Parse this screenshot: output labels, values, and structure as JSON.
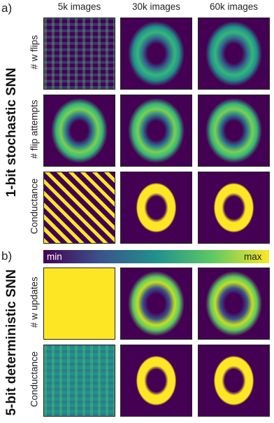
{
  "panel_a": {
    "label": "a)",
    "title": "1-bit stochastic SNN",
    "columns": [
      "5k images",
      "30k images",
      "60k images"
    ],
    "rows": [
      "# w flips",
      "# flip attempts",
      "Conductance"
    ]
  },
  "colorbar": {
    "min": "min",
    "max": "max"
  },
  "panel_b": {
    "label": "b)",
    "title": "5-bit deterministic SNN",
    "rows": [
      "# w updates",
      "Conductance"
    ]
  }
}
